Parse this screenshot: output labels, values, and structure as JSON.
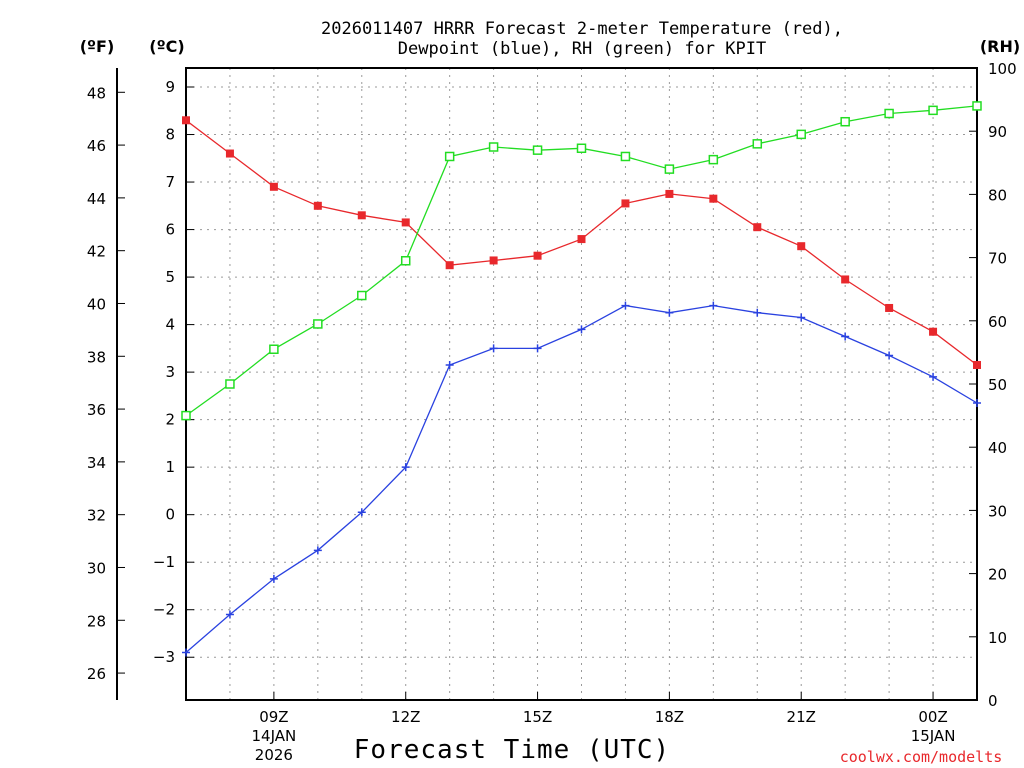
{
  "chart_data": {
    "type": "line",
    "title_lines": [
      "2026011407 HRRR Forecast 2-meter Temperature (red),",
      "Dewpoint (blue), RH (green) for KPIT"
    ],
    "xlabel": "Forecast Time (UTC)",
    "credit": "coolwx.com/modelts",
    "units": {
      "left_outer": "(ºF)",
      "left_inner": "(ºC)",
      "right": "(RH)"
    },
    "x_hours": [
      7,
      8,
      9,
      10,
      11,
      12,
      13,
      14,
      15,
      16,
      17,
      18,
      19,
      20,
      21,
      22,
      23,
      24,
      25
    ],
    "x_range": [
      7,
      25
    ],
    "x_ticks": [
      {
        "hour": 9,
        "label": "09Z",
        "sub": [
          "14JAN",
          "2026"
        ]
      },
      {
        "hour": 12,
        "label": "12Z",
        "sub": []
      },
      {
        "hour": 15,
        "label": "15Z",
        "sub": []
      },
      {
        "hour": 18,
        "label": "18Z",
        "sub": []
      },
      {
        "hour": 21,
        "label": "21Z",
        "sub": []
      },
      {
        "hour": 24,
        "label": "00Z",
        "sub": [
          "15JAN"
        ]
      }
    ],
    "celsius_axis": {
      "min": -3.9,
      "max": 9.4,
      "ticks": [
        -3,
        -2,
        -1,
        0,
        1,
        2,
        3,
        4,
        5,
        6,
        7,
        8,
        9
      ]
    },
    "fahrenheit_axis": {
      "ticks": [
        26,
        28,
        30,
        32,
        34,
        36,
        38,
        40,
        42,
        44,
        46,
        48
      ]
    },
    "rh_axis": {
      "min": 0,
      "max": 100,
      "ticks": [
        0,
        10,
        20,
        30,
        40,
        50,
        60,
        70,
        80,
        90,
        100
      ]
    },
    "series": [
      {
        "name": "Temperature",
        "unit": "C",
        "color": "#e8282c",
        "marker": "filled-square",
        "values": [
          8.3,
          7.6,
          6.9,
          6.5,
          6.3,
          6.15,
          5.25,
          5.35,
          5.45,
          5.8,
          6.55,
          6.75,
          6.65,
          6.05,
          5.65,
          4.95,
          4.35,
          3.85,
          3.15
        ]
      },
      {
        "name": "Dewpoint",
        "unit": "C",
        "color": "#2a42e0",
        "marker": "plus",
        "values": [
          -2.9,
          -2.1,
          -1.35,
          -0.75,
          0.05,
          1.0,
          3.15,
          3.5,
          3.5,
          3.9,
          4.4,
          4.25,
          4.4,
          4.25,
          4.15,
          3.75,
          3.35,
          2.9,
          2.35
        ]
      },
      {
        "name": "RH",
        "unit": "%",
        "color": "#22dd22",
        "marker": "open-square",
        "values": [
          45,
          50,
          55.5,
          59.5,
          64,
          69.5,
          86,
          87.5,
          87,
          87.3,
          86,
          84,
          85.5,
          88,
          89.5,
          91.5,
          92.8,
          93.3,
          94
        ]
      }
    ]
  }
}
